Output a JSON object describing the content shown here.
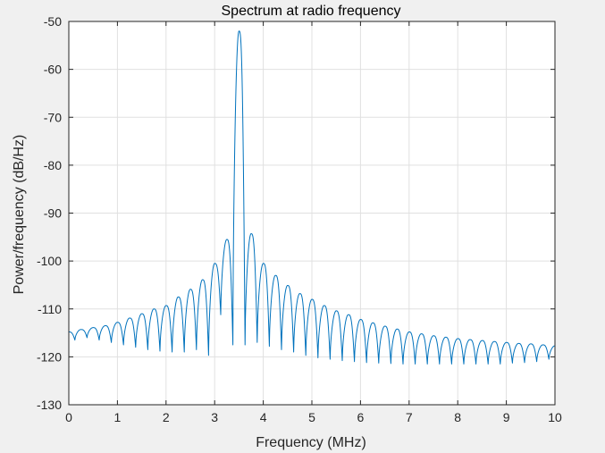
{
  "chart_data": {
    "type": "line",
    "title": "Spectrum at radio frequency",
    "xlabel": "Frequency (MHz)",
    "ylabel": "Power/frequency (dB/Hz)",
    "xlim": [
      0,
      10
    ],
    "ylim": [
      -130,
      -50
    ],
    "xticks": [
      0,
      1,
      2,
      3,
      4,
      5,
      6,
      7,
      8,
      9,
      10
    ],
    "yticks": [
      -130,
      -120,
      -110,
      -100,
      -90,
      -80,
      -70,
      -60,
      -50
    ],
    "grid": true,
    "line_color": "#0072bd",
    "background_color": "#ffffff",
    "figure_color": "#f0f0f0",
    "grid_color": "#e0e0e0",
    "series": [
      {
        "peak_frequency": 3.5,
        "peak_value": -52,
        "sidelobe_spacing": 0.25,
        "sidelobe_peaks": [
          [
            0.0,
            -114.8
          ],
          [
            0.25,
            -114.3
          ],
          [
            0.5,
            -113.9
          ],
          [
            0.75,
            -113.5
          ],
          [
            1.0,
            -112.8
          ],
          [
            1.25,
            -111.9
          ],
          [
            1.5,
            -111.0
          ],
          [
            1.75,
            -110.0
          ],
          [
            2.0,
            -109.3
          ],
          [
            2.25,
            -107.5
          ],
          [
            2.5,
            -105.9
          ],
          [
            2.75,
            -103.9
          ],
          [
            3.0,
            -100.5
          ],
          [
            3.25,
            -95.5
          ],
          [
            3.75,
            -94.3
          ],
          [
            4.0,
            -100.5
          ],
          [
            4.25,
            -103.0
          ],
          [
            4.5,
            -105.1
          ],
          [
            4.75,
            -106.8
          ],
          [
            5.0,
            -108.0
          ],
          [
            5.25,
            -109.3
          ],
          [
            5.5,
            -110.4
          ],
          [
            5.75,
            -111.2
          ],
          [
            6.0,
            -112.2
          ],
          [
            6.25,
            -112.9
          ],
          [
            6.5,
            -113.6
          ],
          [
            6.75,
            -114.2
          ],
          [
            7.0,
            -114.8
          ],
          [
            7.25,
            -115.2
          ],
          [
            7.5,
            -115.6
          ],
          [
            7.75,
            -115.9
          ],
          [
            8.0,
            -116.2
          ],
          [
            8.25,
            -116.4
          ],
          [
            8.5,
            -116.6
          ],
          [
            8.75,
            -116.8
          ],
          [
            9.0,
            -117.0
          ],
          [
            9.25,
            -117.2
          ],
          [
            9.5,
            -117.3
          ],
          [
            9.75,
            -117.5
          ],
          [
            10.0,
            -117.7
          ]
        ],
        "nulls": [
          [
            0.125,
            -116.5
          ],
          [
            0.375,
            -116.0
          ],
          [
            0.625,
            -116.5
          ],
          [
            0.875,
            -117.0
          ],
          [
            1.125,
            -117.5
          ],
          [
            1.375,
            -118.0
          ],
          [
            1.625,
            -118.5
          ],
          [
            1.875,
            -118.8
          ],
          [
            2.125,
            -119.0
          ],
          [
            2.375,
            -119.0
          ],
          [
            2.625,
            -118.5
          ],
          [
            2.875,
            -119.7
          ],
          [
            3.125,
            -111.2
          ],
          [
            3.375,
            -117.5
          ],
          [
            3.625,
            -117.5
          ],
          [
            3.875,
            -117.0
          ],
          [
            4.125,
            -117.8
          ],
          [
            4.375,
            -118.5
          ],
          [
            4.625,
            -119.0
          ],
          [
            4.875,
            -119.7
          ],
          [
            5.125,
            -120.2
          ],
          [
            5.375,
            -120.5
          ],
          [
            5.625,
            -120.8
          ],
          [
            5.875,
            -121.0
          ],
          [
            6.125,
            -121.2
          ],
          [
            6.375,
            -121.3
          ],
          [
            6.625,
            -121.4
          ],
          [
            6.875,
            -121.5
          ],
          [
            7.125,
            -121.5
          ],
          [
            7.375,
            -121.5
          ],
          [
            7.625,
            -121.5
          ],
          [
            7.875,
            -121.5
          ],
          [
            8.125,
            -121.5
          ],
          [
            8.375,
            -121.5
          ],
          [
            8.625,
            -121.5
          ],
          [
            8.875,
            -121.5
          ],
          [
            9.125,
            -121.3
          ],
          [
            9.375,
            -121.2
          ],
          [
            9.625,
            -121.0
          ],
          [
            9.875,
            -120.5
          ]
        ]
      }
    ]
  }
}
